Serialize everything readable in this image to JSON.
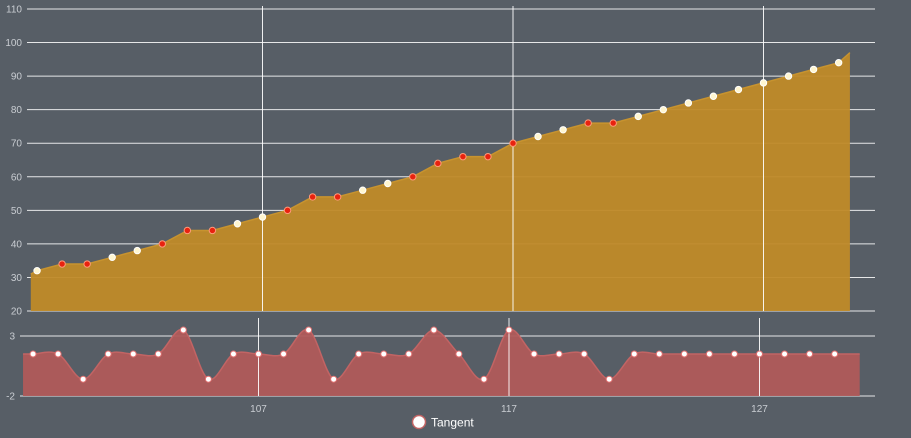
{
  "chart_data": [
    {
      "type": "area",
      "x": [
        98,
        99,
        100,
        101,
        102,
        103,
        104,
        105,
        106,
        107,
        108,
        109,
        110,
        111,
        112,
        113,
        114,
        115,
        116,
        117,
        118,
        119,
        120,
        121,
        122,
        123,
        124,
        125,
        126,
        127,
        128,
        129,
        130,
        131
      ],
      "y_ticks": [
        110,
        100,
        90,
        80,
        70,
        60,
        50,
        40,
        30,
        20
      ],
      "x_reference_lines": [
        107,
        117,
        127
      ],
      "ylim": [
        20,
        110
      ],
      "series": [
        {
          "values": [
            31,
            32,
            34,
            34,
            36,
            38,
            40,
            44,
            44,
            46,
            48,
            50,
            54,
            54,
            56,
            58,
            60,
            64,
            66,
            66,
            70,
            72,
            74,
            76,
            76,
            78,
            80,
            82,
            84,
            86,
            88,
            90,
            92,
            94,
            97
          ],
          "x": [
            97.75,
            98,
            99,
            100,
            101,
            102,
            103,
            104,
            105,
            106,
            107,
            108,
            109,
            110,
            111,
            112,
            113,
            114,
            115,
            116,
            117,
            118,
            119,
            120,
            121,
            122,
            123,
            124,
            125,
            126,
            127,
            128,
            129,
            130,
            130.45
          ],
          "marker_colors": [
            "none",
            "white",
            "red",
            "red",
            "white",
            "white",
            "red",
            "red",
            "red",
            "white",
            "white",
            "red",
            "red",
            "red",
            "white",
            "white",
            "red",
            "red",
            "red",
            "red",
            "red",
            "white",
            "white",
            "red",
            "red",
            "white",
            "white",
            "white",
            "white",
            "white",
            "white",
            "white",
            "white",
            "white",
            "none"
          ]
        }
      ],
      "colors": {
        "fill": "#c08a28",
        "line": "#c7932f",
        "up_marker": "#fff6d0",
        "down_marker": "#e8220f"
      },
      "grid": true
    },
    {
      "type": "area",
      "y_ticks": [
        3,
        -2
      ],
      "x_ticks": [
        107,
        117,
        127
      ],
      "ylim": [
        -2,
        4.5
      ],
      "series": [
        {
          "name": "Tangent",
          "x": [
            97.6,
            98,
            99,
            100,
            101,
            102,
            103,
            104,
            105,
            106,
            107,
            108,
            109,
            110,
            111,
            112,
            113,
            114,
            115,
            116,
            117,
            118,
            119,
            120,
            121,
            122,
            123,
            124,
            125,
            126,
            127,
            128,
            129,
            130,
            131
          ],
          "values": [
            1.5,
            1.5,
            1.5,
            -0.6,
            1.5,
            1.5,
            1.5,
            3.5,
            -0.6,
            1.5,
            1.5,
            1.5,
            3.5,
            -0.6,
            1.5,
            1.5,
            1.5,
            3.5,
            1.5,
            -0.6,
            3.5,
            1.5,
            1.5,
            1.5,
            -0.6,
            1.5,
            1.5,
            1.5,
            1.5,
            1.5,
            1.5,
            1.5,
            1.5,
            1.5,
            1.5
          ]
        }
      ],
      "colors": {
        "fill": "#b05a5a",
        "line": "#c26464",
        "marker": "#ffffff"
      },
      "grid": true
    }
  ],
  "legend": {
    "label": "Tangent"
  }
}
